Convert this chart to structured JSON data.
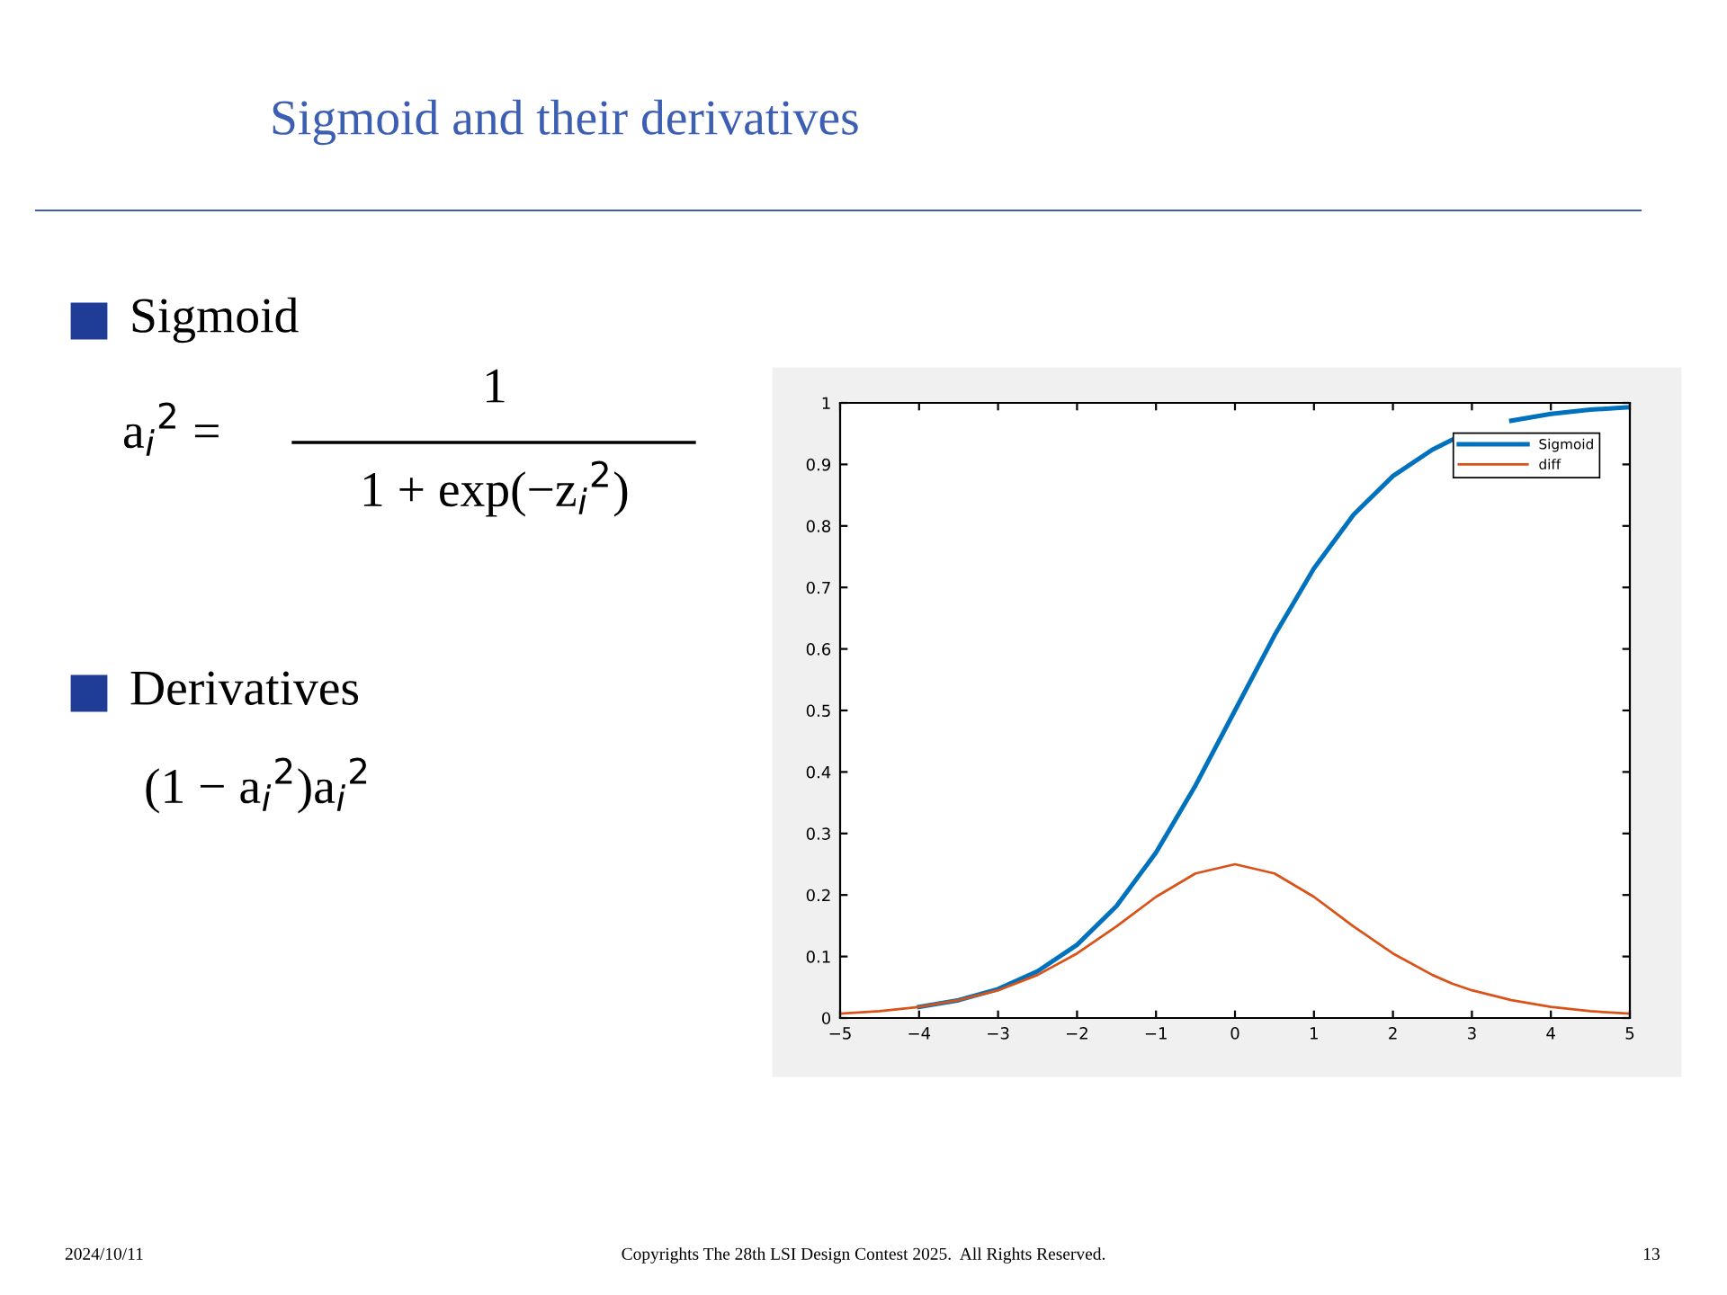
{
  "chart_data": {
    "type": "line",
    "title": "Sigmoid and their derivatives",
    "annotations": [
      "Sigmoid",
      "a$_{i}$$^{2}$ =",
      "1",
      "1 + exp(−z$_{i}$$^{2}$)",
      "Derivatives",
      "(1 − a$_{i}$$^{2}$)a$_{i}$$^{2}$",
      "2024/10/11",
      "Copyrights The 28th LSI Design Contest 2025.  All Rights Reserved.",
      "13"
    ],
    "x": [
      -5,
      -4.5,
      -4,
      -3.5,
      -3,
      -2.5,
      -2,
      -1.5,
      -1,
      -0.5,
      0,
      0.5,
      1,
      1.5,
      2,
      2.5,
      2.75,
      3,
      3.5,
      4,
      4.5,
      5
    ],
    "series": [
      {
        "name": "Sigmoid",
        "color": "#0072bd",
        "values": [
          null,
          null,
          0.018,
          0.029,
          0.047,
          0.076,
          0.119,
          0.182,
          0.269,
          0.378,
          0.5,
          0.622,
          0.731,
          0.818,
          0.881,
          0.924,
          0.94,
          null,
          0.971,
          0.982,
          0.989,
          0.993
        ]
      },
      {
        "name": "diff",
        "color": "#d95319",
        "values": [
          0.007,
          0.011,
          0.018,
          0.029,
          0.045,
          0.07,
          0.105,
          0.149,
          0.197,
          0.235,
          0.25,
          0.235,
          0.197,
          0.149,
          0.105,
          0.07,
          0.056,
          0.045,
          0.029,
          0.018,
          0.011,
          0.007
        ]
      }
    ],
    "xlim": [
      -5,
      5
    ],
    "xticks": [
      -5,
      -4,
      -3,
      -2,
      -1,
      0,
      1,
      2,
      3,
      4,
      5
    ],
    "ylim": [
      0,
      1
    ],
    "yticks": [
      0,
      0.1,
      0.2,
      0.3,
      0.4,
      0.5,
      0.6,
      0.7,
      0.8,
      0.9,
      1
    ],
    "legend": "top right"
  }
}
